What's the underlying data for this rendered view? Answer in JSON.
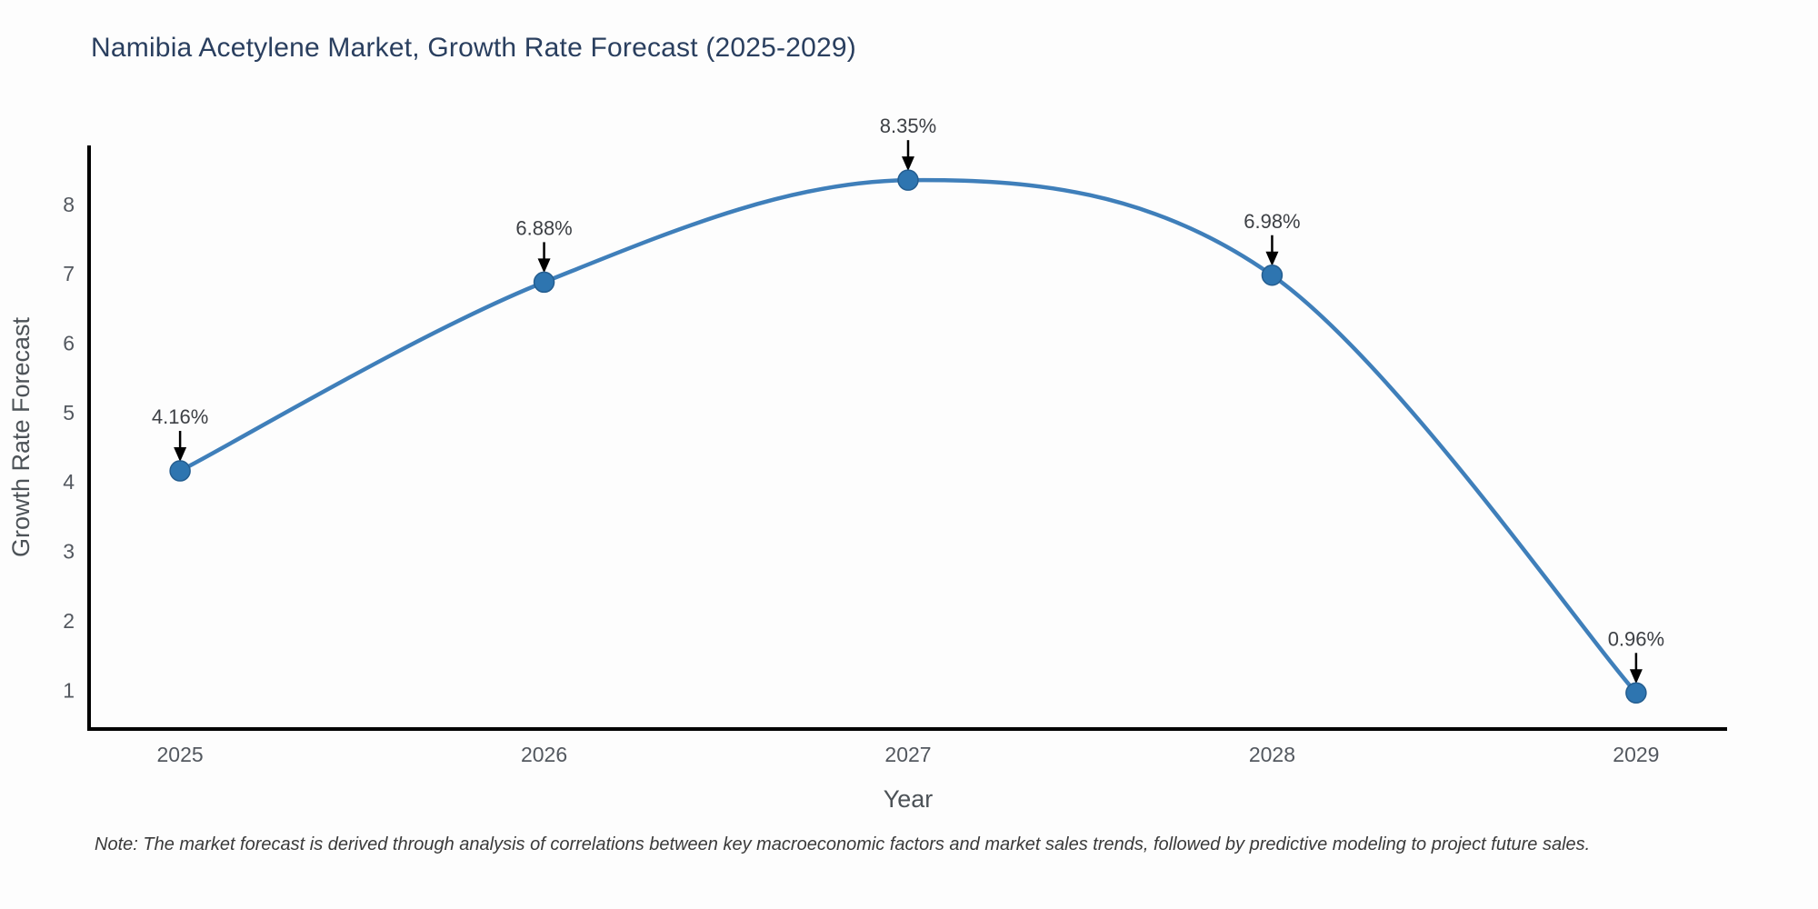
{
  "title": "Namibia Acetylene Market, Growth Rate Forecast (2025-2029)",
  "note": "Note: The market forecast is derived through analysis of correlations between key macroeconomic factors and market sales trends, followed by predictive modeling to project future sales.",
  "chart_data": {
    "type": "line",
    "title": "Namibia Acetylene Market, Growth Rate Forecast (2025-2029)",
    "xlabel": "Year",
    "ylabel": "Growth Rate Forecast",
    "x": [
      2025,
      2026,
      2027,
      2028,
      2029
    ],
    "y": [
      4.16,
      6.88,
      8.35,
      6.98,
      0.96
    ],
    "point_labels": [
      "4.16%",
      "6.88%",
      "8.35%",
      "6.98%",
      "0.96%"
    ],
    "xticks": [
      2025,
      2026,
      2027,
      2028,
      2029
    ],
    "yticks": [
      1,
      2,
      3,
      4,
      5,
      6,
      7,
      8
    ],
    "xlim": [
      2024.75,
      2029.25
    ],
    "ylim": [
      0.44,
      8.85
    ],
    "line_shape": "spline",
    "grid": false,
    "legend_position": "none",
    "colors": {
      "line": "#3f7fba",
      "marker_fill": "#2e75b0",
      "marker_edge": "#245d8f",
      "axis_line": "#000000",
      "arrow": "#000000",
      "title_text": "#2a3f5f",
      "tick_text": "#53585f",
      "annotation_text": "#3d4045"
    }
  }
}
